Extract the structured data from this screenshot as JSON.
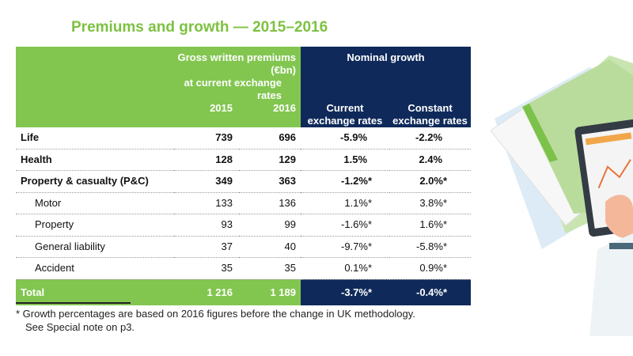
{
  "title": "Premiums and growth — 2015–2016",
  "header": {
    "gwp_label_1": "Gross written premiums (€bn)",
    "gwp_label_2": "at current exchange rates",
    "nominal_growth": "Nominal growth",
    "year_2015": "2015",
    "year_2016": "2016",
    "current_1": "Current",
    "current_2": "exchange rates",
    "constant_1": "Constant",
    "constant_2": "exchange rates"
  },
  "rows": [
    {
      "label": "Life",
      "y2015": "739",
      "y2016": "696",
      "current": "-5.9%",
      "constant": "-2.2%"
    },
    {
      "label": "Health",
      "y2015": "128",
      "y2016": "129",
      "current": "1.5%",
      "constant": "2.4%"
    },
    {
      "label": "Property & casualty (P&C)",
      "y2015": "349",
      "y2016": "363",
      "current": "-1.2%*",
      "constant": "2.0%*"
    },
    {
      "label": "Motor",
      "y2015": "133",
      "y2016": "136",
      "current": "1.1%*",
      "constant": "3.8%*"
    },
    {
      "label": "Property",
      "y2015": "93",
      "y2016": "99",
      "current": "-1.6%*",
      "constant": "1.6%*"
    },
    {
      "label": "General liability",
      "y2015": "37",
      "y2016": "40",
      "current": "-9.7%*",
      "constant": "-5.8%*"
    },
    {
      "label": "Accident",
      "y2015": "35",
      "y2016": "35",
      "current": "0.1%*",
      "constant": "0.9%*"
    }
  ],
  "total": {
    "label": "Total",
    "y2015": "1 216",
    "y2016": "1 189",
    "current": "-3.7%*",
    "constant": "-0.4%*"
  },
  "footnote": {
    "line1": "* Growth percentages are based on 2016 figures before the change in UK  methodology.",
    "line2": "See Special note on p3."
  },
  "colors": {
    "green": "#82c650",
    "navy": "#0f2a5a",
    "title_green": "#7dc142"
  }
}
